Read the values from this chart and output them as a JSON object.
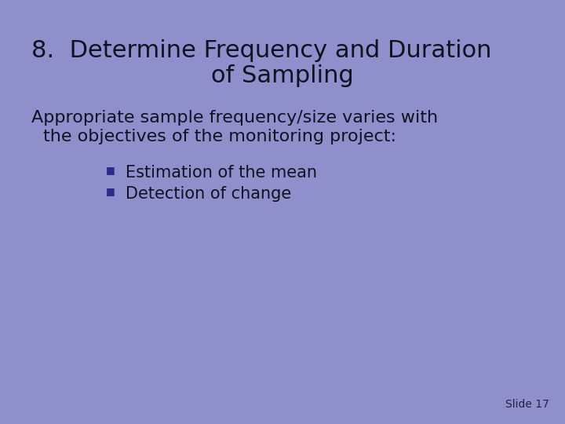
{
  "background_color": "#8f8fcc",
  "title_line1": "8.  Determine Frequency and Duration",
  "title_line2": "of Sampling",
  "title_fontsize": 22,
  "title_color": "#111122",
  "body_text_line1": "Appropriate sample frequency/size varies with",
  "body_text_line2": "the objectives of the monitoring project:",
  "body_fontsize": 16,
  "body_color": "#111122",
  "bullet_items": [
    "Estimation of the mean",
    "Detection of change"
  ],
  "bullet_fontsize": 15,
  "bullet_color": "#111122",
  "bullet_marker_color": "#2a2a88",
  "slide_label": "Slide 17",
  "slide_label_fontsize": 10,
  "slide_label_color": "#222244"
}
